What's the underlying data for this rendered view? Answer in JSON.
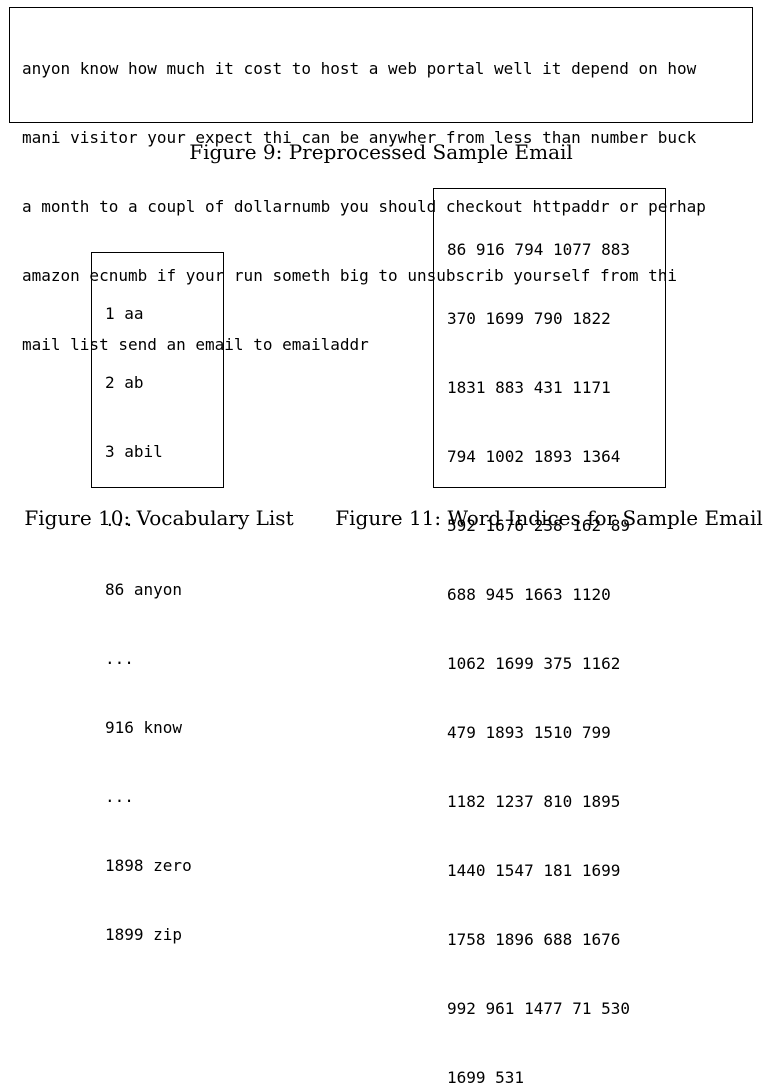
{
  "figure9": {
    "lines": [
      "anyon know how much it cost to host a web portal well it depend on how",
      "mani visitor your expect thi can be anywher from less than number buck",
      "a month to a coupl of dollarnumb you should checkout httpaddr or perhap",
      "amazon ecnumb if your run someth big to unsubscrib yourself from thi",
      "mail list send an email to emailaddr"
    ],
    "caption": "Figure 9: Preprocessed Sample Email"
  },
  "figure10": {
    "lines": [
      "1 aa",
      "2 ab",
      "3 abil",
      "...",
      "86 anyon",
      "...",
      "916 know",
      "...",
      "1898 zero",
      "1899 zip"
    ],
    "caption": "Figure 10: Vocabulary List"
  },
  "figure11": {
    "lines": [
      "86 916 794 1077 883",
      "370 1699 790 1822",
      "1831 883 431 1171",
      "794 1002 1893 1364",
      "592 1676 238 162 89",
      "688 945 1663 1120",
      "1062 1699 375 1162",
      "479 1893 1510 799",
      "1182 1237 810 1895",
      "1440 1547 181 1699",
      "1758 1896 688 1676",
      "992 961 1477 71 530",
      "1699 531"
    ],
    "caption": "Figure 11: Word Indices for Sample Email"
  }
}
